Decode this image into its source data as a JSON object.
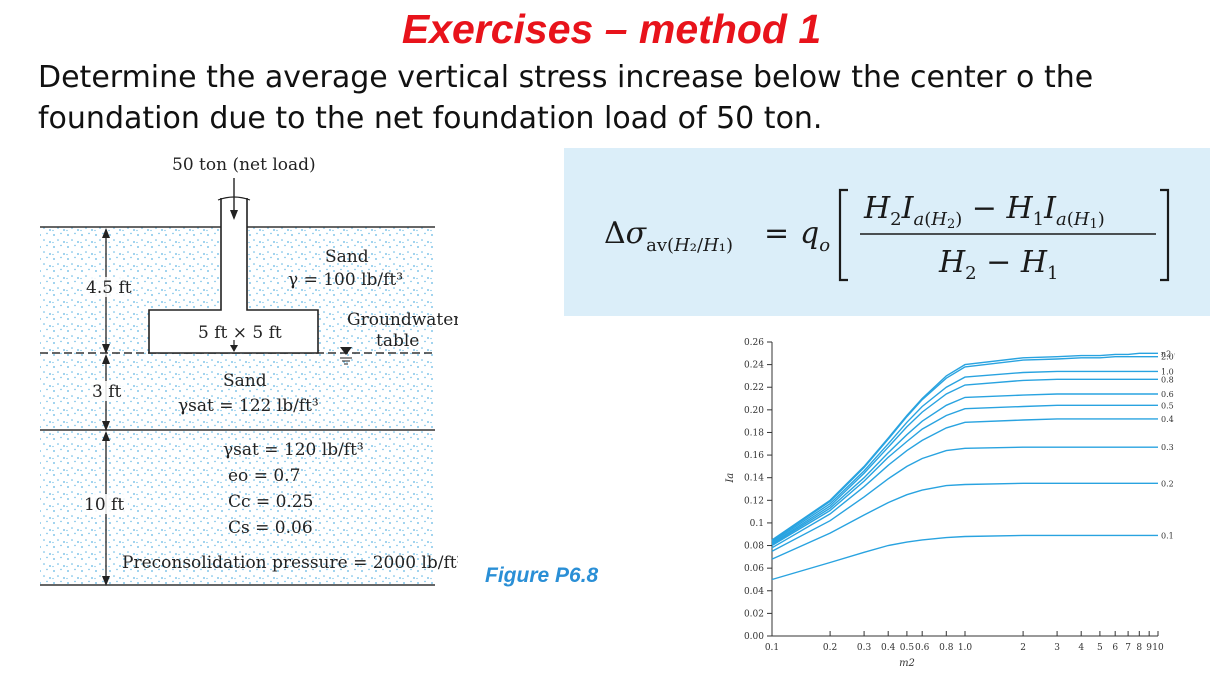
{
  "title": "Exercises – method 1",
  "question": {
    "line1": "Determine the average vertical stress increase below the center o the",
    "line2": "foundation due to the net foundation load of 50 ton."
  },
  "figure": {
    "caption": "Figure P6.8",
    "load_label": "50 ton (net load)",
    "sand_top": {
      "name": "Sand",
      "gamma": "γ = 100 lb/ft³"
    },
    "footing_label": "5 ft × 5 ft",
    "groundwater": {
      "line1": "Groundwater",
      "line2": "table"
    },
    "sand_mid": {
      "name": "Sand",
      "gamma": "γsat = 122 lb/ft³"
    },
    "clay": {
      "gamma": "γsat = 120 lb/ft³",
      "eo": "eo = 0.7",
      "cc": "Cc = 0.25",
      "cs": "Cs = 0.06",
      "preconsolidation": "Preconsolidation pressure = 2000 lb/ft²"
    },
    "depths": {
      "d1": "4.5 ft",
      "d2": "3 ft",
      "d3": "10 ft"
    }
  },
  "formula": {
    "lhs": "Δσav(H2/H1)",
    "text": "Δσav(H2/H1) = qo [ (H2 Ia(H2) − H1 Ia(H1)) / (H2 − H1) ]",
    "highlight_color": "#dbeef9"
  },
  "chart_data": {
    "type": "line",
    "xlabel": "m2",
    "ylabel": "Ia",
    "xscale": "log",
    "xlim": [
      0.1,
      10
    ],
    "ylim": [
      0,
      0.26
    ],
    "x_ticks": [
      "0.1",
      "0.2",
      "0.3",
      "0.4",
      "0.5",
      "0.6",
      "0.8",
      "1.0",
      "2",
      "3",
      "4",
      "5",
      "6",
      "7",
      "8",
      "9",
      "10"
    ],
    "y_ticks": [
      "0.00",
      "0.02",
      "0.04",
      "0.06",
      "0.08",
      "0.1",
      "0.12",
      "0.14",
      "0.16",
      "0.18",
      "0.20",
      "0.22",
      "0.24",
      "0.26"
    ],
    "line_color": "#29a3e0",
    "x": [
      0.1,
      0.2,
      0.3,
      0.4,
      0.5,
      0.6,
      0.8,
      1.0,
      2,
      3,
      4,
      5,
      6,
      7,
      8,
      9,
      10
    ],
    "series": [
      {
        "name": "n2 = ∞",
        "values": [
          0.085,
          0.12,
          0.15,
          0.175,
          0.195,
          0.21,
          0.23,
          0.24,
          0.246,
          0.247,
          0.248,
          0.248,
          0.249,
          0.249,
          0.25,
          0.25,
          0.25
        ]
      },
      {
        "name": "2.0",
        "values": [
          0.084,
          0.119,
          0.149,
          0.174,
          0.194,
          0.209,
          0.228,
          0.238,
          0.244,
          0.245,
          0.246,
          0.246,
          0.247,
          0.247,
          0.247,
          0.247,
          0.247
        ]
      },
      {
        "name": "1.0",
        "values": [
          0.083,
          0.117,
          0.146,
          0.17,
          0.189,
          0.203,
          0.22,
          0.229,
          0.233,
          0.234,
          0.234,
          0.234,
          0.234,
          0.234,
          0.234,
          0.234,
          0.234
        ]
      },
      {
        "name": "0.8",
        "values": [
          0.082,
          0.115,
          0.144,
          0.167,
          0.185,
          0.198,
          0.214,
          0.222,
          0.226,
          0.227,
          0.227,
          0.227,
          0.227,
          0.227,
          0.227,
          0.227,
          0.227
        ]
      },
      {
        "name": "0.6",
        "values": [
          0.081,
          0.113,
          0.14,
          0.162,
          0.178,
          0.19,
          0.204,
          0.211,
          0.213,
          0.214,
          0.214,
          0.214,
          0.214,
          0.214,
          0.214,
          0.214,
          0.214
        ]
      },
      {
        "name": "0.5",
        "values": [
          0.08,
          0.111,
          0.137,
          0.158,
          0.172,
          0.183,
          0.195,
          0.201,
          0.203,
          0.204,
          0.204,
          0.204,
          0.204,
          0.204,
          0.204,
          0.204,
          0.204
        ]
      },
      {
        "name": "0.4",
        "values": [
          0.078,
          0.108,
          0.132,
          0.151,
          0.164,
          0.173,
          0.184,
          0.189,
          0.191,
          0.192,
          0.192,
          0.192,
          0.192,
          0.192,
          0.192,
          0.192,
          0.192
        ]
      },
      {
        "name": "0.3",
        "values": [
          0.075,
          0.102,
          0.123,
          0.139,
          0.15,
          0.157,
          0.164,
          0.166,
          0.167,
          0.167,
          0.167,
          0.167,
          0.167,
          0.167,
          0.167,
          0.167,
          0.167
        ]
      },
      {
        "name": "0.2",
        "values": [
          0.068,
          0.091,
          0.107,
          0.118,
          0.125,
          0.129,
          0.133,
          0.134,
          0.135,
          0.135,
          0.135,
          0.135,
          0.135,
          0.135,
          0.135,
          0.135,
          0.135
        ]
      },
      {
        "name": "0.1",
        "values": [
          0.05,
          0.065,
          0.074,
          0.08,
          0.083,
          0.085,
          0.087,
          0.088,
          0.089,
          0.089,
          0.089,
          0.089,
          0.089,
          0.089,
          0.089,
          0.089,
          0.089
        ]
      }
    ]
  }
}
